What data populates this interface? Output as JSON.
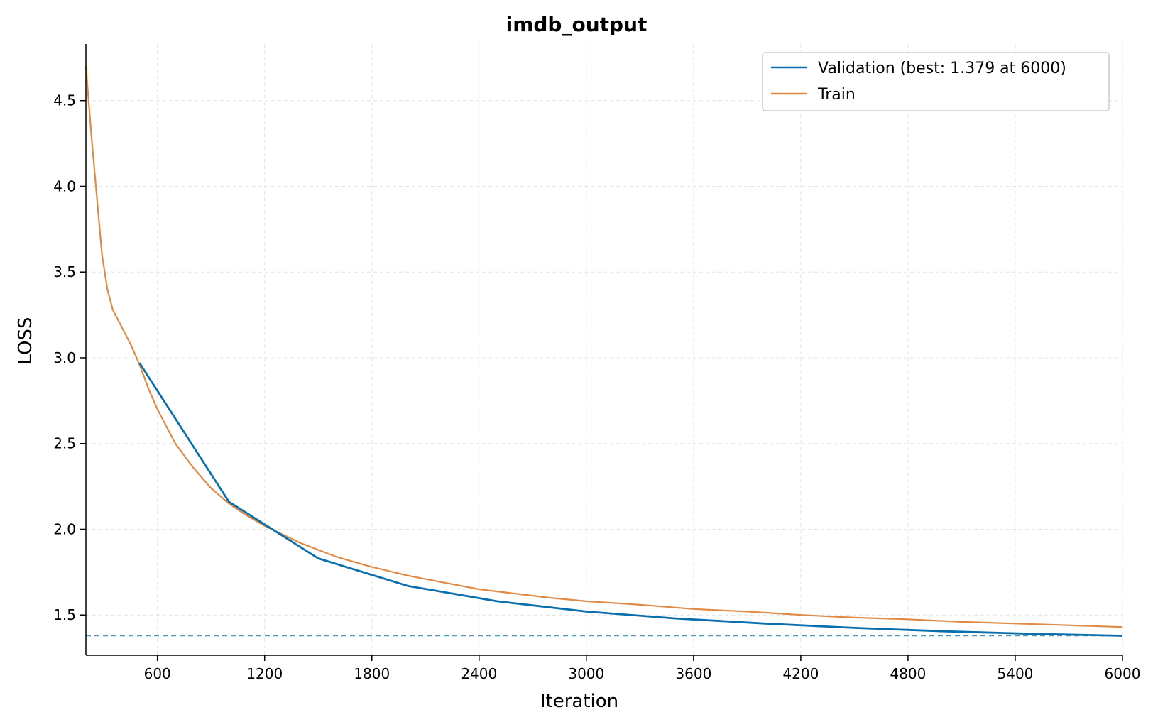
{
  "chart_data": {
    "type": "line",
    "title": "imdb_output",
    "xlabel": "Iteration",
    "ylabel": "LOSS",
    "xlim": [
      200,
      6000
    ],
    "ylim": [
      1.265,
      4.83
    ],
    "xticks": [
      600,
      1200,
      1800,
      2400,
      3000,
      3600,
      4200,
      4800,
      5400,
      6000
    ],
    "yticks": [
      1.5,
      2.0,
      2.5,
      3.0,
      3.5,
      4.0,
      4.5
    ],
    "grid": true,
    "legend_position": "top-right",
    "reference_line": {
      "y": 1.379,
      "style": "dashed",
      "color": "#4a9ab8"
    },
    "series": [
      {
        "name": "Validation (best: 1.379 at 6000)",
        "color": "#0a6fad",
        "x": [
          500,
          1000,
          1500,
          2000,
          2500,
          3000,
          3500,
          4000,
          4500,
          5000,
          5500,
          6000
        ],
        "y": [
          2.97,
          2.16,
          1.83,
          1.67,
          1.58,
          1.52,
          1.48,
          1.45,
          1.425,
          1.405,
          1.39,
          1.379
        ]
      },
      {
        "name": "Train",
        "color": "#e08a45",
        "x": [
          200,
          230,
          260,
          290,
          320,
          350,
          400,
          450,
          500,
          550,
          600,
          700,
          800,
          900,
          1000,
          1100,
          1200,
          1300,
          1400,
          1500,
          1600,
          1700,
          1800,
          2000,
          2200,
          2400,
          2600,
          2800,
          3000,
          3300,
          3600,
          3900,
          4200,
          4500,
          4800,
          5100,
          5400,
          5700,
          6000
        ],
        "y": [
          4.7,
          4.3,
          3.95,
          3.6,
          3.4,
          3.28,
          3.18,
          3.08,
          2.96,
          2.82,
          2.7,
          2.5,
          2.36,
          2.24,
          2.15,
          2.08,
          2.02,
          1.97,
          1.92,
          1.88,
          1.84,
          1.81,
          1.78,
          1.73,
          1.69,
          1.65,
          1.625,
          1.6,
          1.58,
          1.56,
          1.535,
          1.52,
          1.5,
          1.485,
          1.475,
          1.46,
          1.45,
          1.44,
          1.43
        ]
      }
    ]
  }
}
